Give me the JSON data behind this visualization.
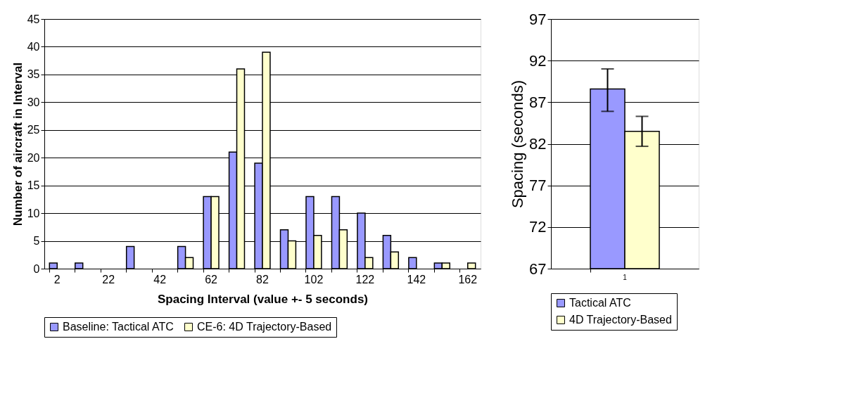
{
  "chart_data": [
    {
      "type": "bar",
      "xlabel": "Spacing Interval (value +- 5 seconds)",
      "ylabel": "Number of aircraft in Interval",
      "categories": [
        "2",
        null,
        "22",
        null,
        "42",
        null,
        "62",
        null,
        "82",
        null,
        "102",
        null,
        "122",
        null,
        "142",
        null,
        "162"
      ],
      "series": [
        {
          "name": "Baseline: Tactical ATC",
          "color": "#9999ff",
          "values": [
            1,
            1,
            0,
            4,
            0,
            4,
            13,
            21,
            19,
            7,
            13,
            13,
            10,
            6,
            2,
            1,
            0
          ]
        },
        {
          "name": "CE-6: 4D Trajectory-Based",
          "color": "#ffffcc",
          "values": [
            0,
            0,
            0,
            0,
            0,
            2,
            13,
            36,
            39,
            5,
            6,
            7,
            2,
            3,
            0,
            1,
            1
          ]
        }
      ],
      "ylim": [
        0,
        45
      ],
      "yticks": [
        0,
        5,
        10,
        15,
        20,
        25,
        30,
        35,
        40,
        45
      ],
      "grid": "y",
      "legend": "bottom"
    },
    {
      "type": "bar",
      "ylabel": "Spacing (seconds)",
      "categories": [
        "1"
      ],
      "series": [
        {
          "name": "Tactical ATC",
          "color": "#9999ff",
          "values": [
            88.6
          ],
          "errors": [
            [
              85.9,
              91.0
            ]
          ]
        },
        {
          "name": "4D Trajectory-Based",
          "color": "#ffffcc",
          "values": [
            83.5
          ],
          "errors": [
            [
              81.7,
              85.3
            ]
          ]
        }
      ],
      "ylim": [
        67,
        97
      ],
      "yticks": [
        67,
        72,
        77,
        82,
        87,
        92,
        97
      ],
      "grid": "y",
      "legend": "bottom"
    }
  ]
}
